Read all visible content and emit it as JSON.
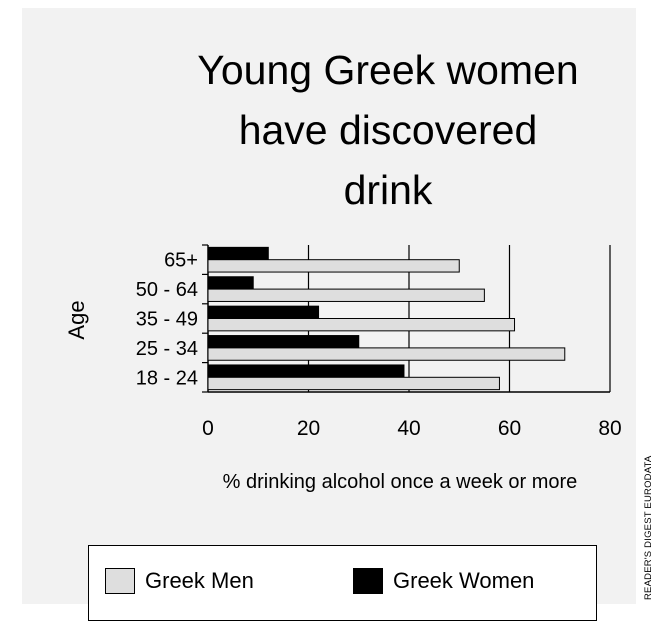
{
  "title_lines": [
    "Young Greek women",
    "have discovered",
    "drink"
  ],
  "source": "READER'S DIGEST EURODATA",
  "colors": {
    "men": "#dedede",
    "women": "#000000",
    "panel": "#f2f2f2"
  },
  "chart_data": {
    "type": "bar",
    "orientation": "horizontal",
    "title": "Young Greek women have discovered drink",
    "xlabel": "% drinking alcohol once a week or more",
    "ylabel": "Age",
    "categories": [
      "65+",
      "50 - 64",
      "35 - 49",
      "25 - 34",
      "18 - 24"
    ],
    "series": [
      {
        "name": "Greek Women",
        "values": [
          12,
          9,
          22,
          30,
          39
        ]
      },
      {
        "name": "Greek Men",
        "values": [
          50,
          55,
          61,
          71,
          58
        ]
      }
    ],
    "xlim": [
      0,
      80
    ],
    "xticks": [
      "0",
      "20",
      "40",
      "60",
      "80"
    ],
    "grid": true,
    "legend_position": "bottom"
  }
}
